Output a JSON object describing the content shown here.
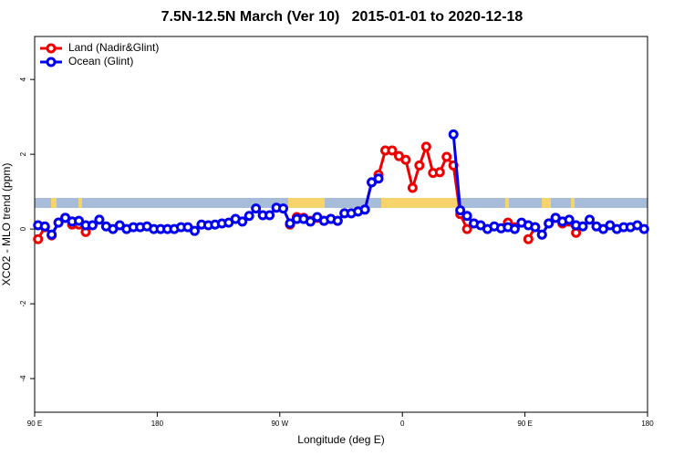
{
  "chart_data": {
    "type": "line",
    "title": "7.5N-12.5N March (Ver 10)   2015-01-01 to 2020-12-18",
    "x_label": "Longitude (deg E)",
    "y_label": "XCO2 - MLO trend (ppm)",
    "x": [
      92.5,
      97.5,
      102.5,
      107.5,
      112.5,
      117.5,
      122.5,
      127.5,
      132.5,
      137.5,
      142.5,
      147.5,
      152.5,
      157.5,
      162.5,
      167.5,
      172.5,
      177.5,
      182.5,
      187.5,
      192.5,
      197.5,
      202.5,
      207.5,
      212.5,
      217.5,
      222.5,
      227.5,
      232.5,
      237.5,
      242.5,
      247.5,
      252.5,
      257.5,
      262.5,
      267.5,
      272.5,
      277.5,
      282.5,
      287.5,
      292.5,
      297.5,
      302.5,
      307.5,
      312.5,
      317.5,
      322.5,
      327.5,
      332.5,
      337.5,
      342.5,
      347.5,
      352.5,
      357.5,
      362.5,
      367.5,
      372.5,
      377.5,
      382.5,
      387.5,
      392.5,
      397.5,
      402.5,
      407.5,
      412.5,
      417.5,
      422.5,
      427.5,
      432.5,
      437.5,
      442.5,
      447.5,
      452.5,
      457.5,
      462.5,
      467.5,
      472.5,
      477.5,
      482.5,
      487.5,
      492.5,
      497.5,
      502.5,
      507.5,
      512.5,
      517.5,
      522.5,
      527.5,
      532.5,
      537.5
    ],
    "series": [
      {
        "name": "Land (Nadir&Glint)",
        "color": "#ee0000",
        "values": [
          -0.27,
          0.05,
          -0.17,
          0.17,
          0.3,
          0.12,
          0.12,
          -0.08,
          null,
          null,
          null,
          null,
          null,
          null,
          null,
          null,
          null,
          null,
          null,
          null,
          null,
          null,
          null,
          null,
          null,
          null,
          null,
          null,
          null,
          null,
          null,
          null,
          null,
          null,
          null,
          null,
          null,
          0.12,
          0.32,
          0.3,
          0.22,
          0.3,
          0.22,
          0.27,
          0.22,
          0.42,
          0.42,
          0.47,
          0.52,
          1.25,
          1.45,
          2.1,
          2.1,
          1.95,
          1.85,
          1.1,
          1.7,
          2.2,
          1.5,
          1.52,
          1.93,
          1.7,
          0.4,
          0,
          0.15,
          null,
          null,
          null,
          null,
          0.17,
          0.05,
          null,
          -0.27,
          0.05,
          -0.15,
          0.15,
          0.3,
          0.15,
          0.2,
          -0.1,
          null,
          null,
          null,
          null,
          null,
          null,
          null,
          null,
          null,
          null
        ]
      },
      {
        "name": "Ocean (Glint)",
        "color": "#0000ee",
        "values": [
          0.1,
          0.07,
          -0.15,
          0.17,
          0.3,
          0.2,
          0.22,
          0.1,
          0.1,
          0.25,
          0.07,
          0,
          0.1,
          0,
          0.05,
          0.05,
          0.07,
          0,
          0,
          0,
          0,
          0.05,
          0.05,
          -0.05,
          0.12,
          0.1,
          0.12,
          0.15,
          0.17,
          0.27,
          0.2,
          0.35,
          0.55,
          0.37,
          0.37,
          0.57,
          0.55,
          0.15,
          0.27,
          0.27,
          0.2,
          0.32,
          0.22,
          0.27,
          0.22,
          0.42,
          0.42,
          0.47,
          0.52,
          1.25,
          1.35,
          null,
          null,
          null,
          null,
          null,
          null,
          null,
          null,
          null,
          null,
          2.53,
          0.5,
          0.35,
          0.15,
          0.1,
          0,
          0.07,
          0.02,
          0.05,
          0,
          0.17,
          0.1,
          0.05,
          -0.15,
          0.15,
          0.3,
          0.2,
          0.25,
          0.1,
          0.07,
          0.25,
          0.07,
          0,
          0.1,
          0,
          0.05,
          0.05,
          0.1,
          0
        ]
      }
    ],
    "xlim": [
      90,
      540
    ],
    "xticks": [
      {
        "value": 90,
        "label": "90 E"
      },
      180,
      {
        "value": 270,
        "label": "90 W"
      },
      {
        "value": 360,
        "label": "0"
      },
      {
        "value": 450,
        "label": "90 E"
      },
      {
        "value": 540,
        "label": "180"
      }
    ],
    "ylim": [
      -4.9,
      5.15
    ],
    "yticks": [
      -4,
      -2,
      0,
      2,
      4
    ],
    "legend": "top-left"
  }
}
